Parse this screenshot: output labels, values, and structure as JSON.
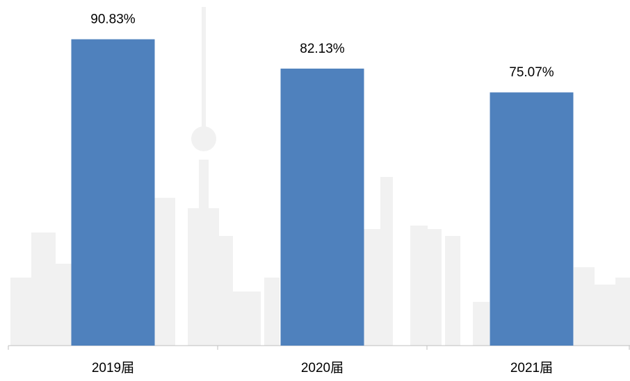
{
  "chart_data": {
    "type": "bar",
    "categories": [
      "2019届",
      "2020届",
      "2021届"
    ],
    "values": [
      90.83,
      82.13,
      75.07
    ],
    "value_labels": [
      "90.83%",
      "82.13%",
      "75.07%"
    ],
    "color": "#4f81bd",
    "ylim": [
      0,
      100
    ]
  }
}
